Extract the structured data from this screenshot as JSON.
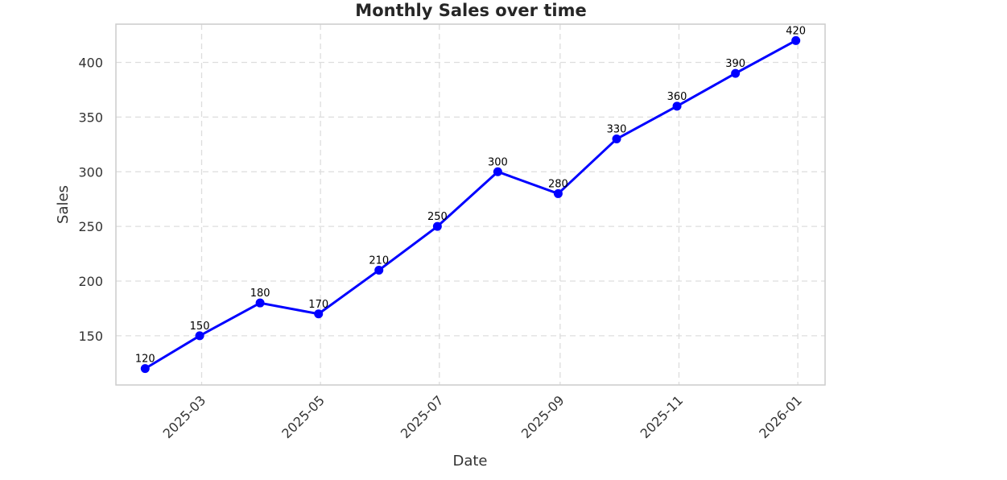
{
  "chart_data": {
    "type": "line",
    "title": "Monthly Sales over time",
    "xlabel": "Date",
    "ylabel": "Sales",
    "x": [
      "2025-01-31",
      "2025-02-28",
      "2025-03-31",
      "2025-04-30",
      "2025-05-31",
      "2025-06-30",
      "2025-07-31",
      "2025-08-31",
      "2025-09-30",
      "2025-10-31",
      "2025-11-30",
      "2025-12-31"
    ],
    "series": [
      {
        "values": [
          120,
          150,
          180,
          170,
          210,
          250,
          300,
          280,
          330,
          360,
          390,
          420
        ],
        "color": "#0000ff"
      }
    ],
    "data_labels": [
      "120",
      "150",
      "180",
      "170",
      "210",
      "250",
      "300",
      "280",
      "330",
      "360",
      "390",
      "420"
    ],
    "x_ticks": [
      {
        "date": "2025-03-01",
        "label": "2025-03"
      },
      {
        "date": "2025-05-01",
        "label": "2025-05"
      },
      {
        "date": "2025-07-01",
        "label": "2025-07"
      },
      {
        "date": "2025-09-01",
        "label": "2025-09"
      },
      {
        "date": "2025-11-01",
        "label": "2025-11"
      },
      {
        "date": "2026-01-01",
        "label": "2026-01"
      }
    ],
    "y_ticks": [
      150,
      200,
      250,
      300,
      350,
      400
    ],
    "ylim": [
      105,
      435
    ],
    "xlim": [
      "2025-01-16",
      "2026-01-15"
    ],
    "grid": true,
    "marker": "circle",
    "colors": {
      "line": "#0000ff",
      "grid": "#dddddd",
      "frame": "#cccccc"
    }
  }
}
